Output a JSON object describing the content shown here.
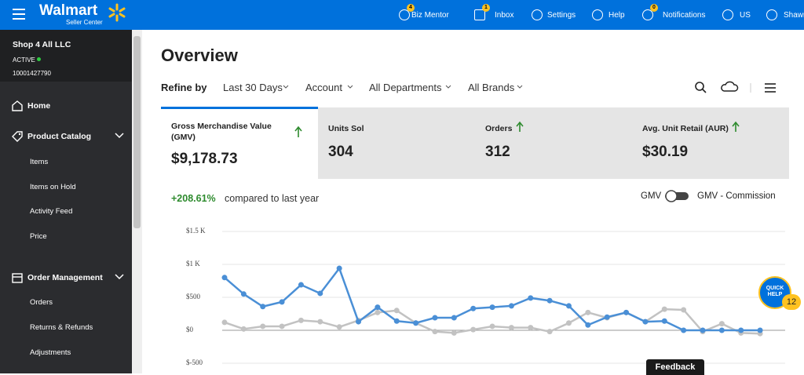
{
  "header": {
    "logo": "Walmart",
    "logo_subtitle": "Seller Center",
    "nav": [
      {
        "label": "Biz Mentor",
        "badge": 4
      },
      {
        "label": "Inbox",
        "badge": 1
      },
      {
        "label": "Settings"
      },
      {
        "label": "Help"
      },
      {
        "label": "Notifications",
        "badge": 0
      },
      {
        "label": "US"
      },
      {
        "label": "Shawn"
      }
    ]
  },
  "sidebar": {
    "shop_name": "Shop 4 All LLC",
    "status": "ACTIVE",
    "seller_id": "10001427790",
    "sections": [
      {
        "label": "Home"
      },
      {
        "label": "Product Catalog",
        "items": [
          "Items",
          "Items on Hold",
          "Activity Feed",
          "Price"
        ]
      },
      {
        "label": "Order Management",
        "items": [
          "Orders",
          "Returns & Refunds",
          "Adjustments"
        ]
      }
    ]
  },
  "main": {
    "title": "Overview",
    "refine_label": "Refine by",
    "filters": [
      "Last 30 Days",
      "Account",
      "All Departments",
      "All Brands"
    ],
    "metrics": [
      {
        "label": "Gross Merchandise Value (GMV)",
        "value": "$9,178.73"
      },
      {
        "label": "Units Sol",
        "value": "304"
      },
      {
        "label": "Orders",
        "value": "312"
      },
      {
        "label": "Avg. Unit Retail (AUR)",
        "value": "$30.19"
      }
    ],
    "change": "+208.61%",
    "change_text": "compared to last year",
    "toggle": [
      "GMV",
      "GMV - Commission"
    ]
  },
  "quick_help": {
    "label": "QUICK HELP",
    "count": 12
  },
  "feedback": "Feedback",
  "chart_data": {
    "type": "line",
    "grid": true,
    "categories": [
      null,
      null,
      null,
      null,
      null,
      null,
      null,
      null,
      null,
      null,
      null,
      null,
      null,
      null,
      null,
      null,
      null,
      null,
      null,
      null,
      null,
      null,
      null,
      null,
      null,
      null,
      null,
      null,
      null
    ],
    "ylim": [
      -500,
      1500
    ],
    "yticks": [
      {
        "value": -500,
        "label": "$-500"
      },
      {
        "value": 0,
        "label": "$0"
      },
      {
        "value": 500,
        "label": "$500"
      },
      {
        "value": 1000,
        "label": "$1 K"
      },
      {
        "value": 1500,
        "label": "$1.5 K"
      }
    ],
    "series": [
      {
        "color": "#4a8fd6",
        "values": [
          800,
          550,
          360,
          430,
          690,
          560,
          940,
          130,
          350,
          140,
          110,
          190,
          190,
          330,
          350,
          370,
          490,
          450,
          370,
          80,
          200,
          270,
          130,
          140,
          0,
          0,
          0,
          0,
          0
        ]
      },
      {
        "color": "#c2c2c2",
        "values": [
          120,
          20,
          60,
          60,
          150,
          130,
          50,
          150,
          270,
          300,
          110,
          -20,
          -40,
          10,
          60,
          40,
          40,
          -20,
          110,
          270,
          190,
          270,
          130,
          320,
          310,
          -20,
          100,
          -40,
          -50
        ]
      }
    ]
  }
}
